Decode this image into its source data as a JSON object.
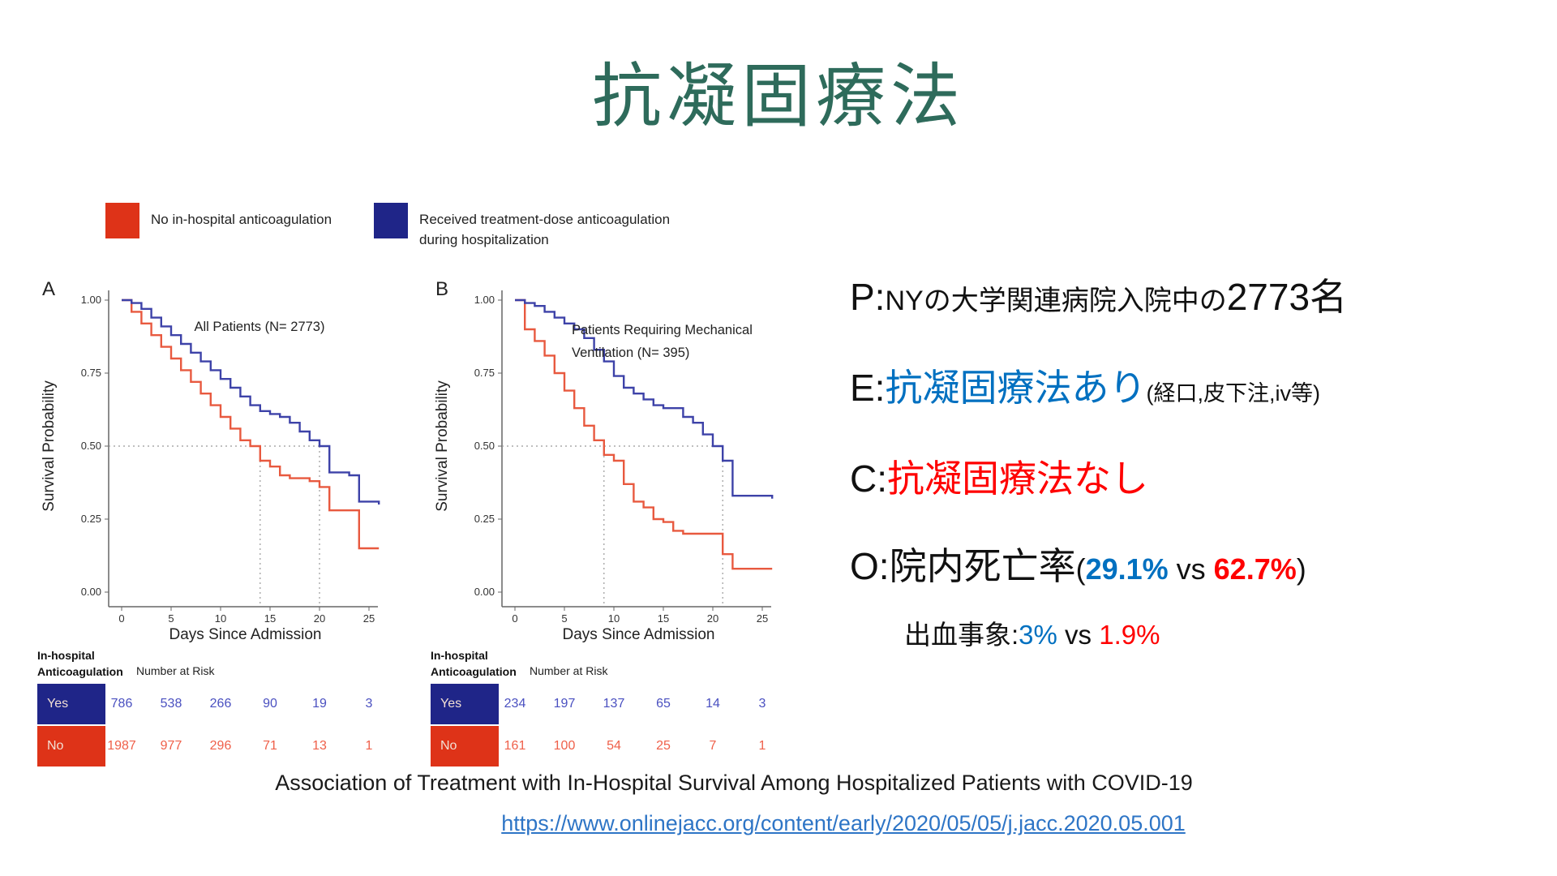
{
  "title": "抗凝固療法",
  "colors": {
    "title_green": "#2E6B5B",
    "text_blue": "#0070C0",
    "text_red": "#FF0000",
    "url_blue": "#2E75C6"
  },
  "figure": {
    "legend": [
      {
        "line1": "No in-hospital anticoagulation",
        "line2": "",
        "color": "#DE3318"
      },
      {
        "line1": "Received treatment-dose anticoagulation",
        "line2": "during hospitalization",
        "color": "#1F2588"
      }
    ]
  },
  "chart_data": [
    {
      "type": "line",
      "panel": "A",
      "annotation": {
        "x": 280,
        "y": 78,
        "anchor": "middle",
        "lines": [
          "All Patients (N= 2773)"
        ]
      },
      "xlabel": "Days Since Admission",
      "ylabel": "Survival Probability",
      "xticks": [
        0,
        5,
        10,
        15,
        20,
        25
      ],
      "yticks": [
        "1.00",
        "0.75",
        "0.50",
        "0.25",
        "0.00"
      ],
      "xlim": [
        0,
        26
      ],
      "ylim": [
        0,
        1
      ],
      "grid": false,
      "median_guides": {
        "y": 0.5,
        "x": [
          14,
          20
        ]
      },
      "series": [
        {
          "name": "No in-hospital anticoagulation",
          "color": "#E8593F",
          "points": [
            [
              0,
              1
            ],
            [
              1,
              0.96
            ],
            [
              2,
              0.92
            ],
            [
              3,
              0.88
            ],
            [
              4,
              0.84
            ],
            [
              5,
              0.8
            ],
            [
              6,
              0.76
            ],
            [
              7,
              0.72
            ],
            [
              8,
              0.68
            ],
            [
              9,
              0.64
            ],
            [
              10,
              0.6
            ],
            [
              11,
              0.56
            ],
            [
              12,
              0.52
            ],
            [
              13,
              0.5
            ],
            [
              14,
              0.45
            ],
            [
              15,
              0.43
            ],
            [
              16,
              0.4
            ],
            [
              17,
              0.39
            ],
            [
              19,
              0.38
            ],
            [
              20,
              0.36
            ],
            [
              21,
              0.28
            ],
            [
              23,
              0.28
            ],
            [
              24,
              0.15
            ],
            [
              26,
              0.15
            ]
          ]
        },
        {
          "name": "Received treatment-dose anticoagulation during hospitalization",
          "color": "#3D42A8",
          "points": [
            [
              0,
              1
            ],
            [
              1,
              0.99
            ],
            [
              2,
              0.97
            ],
            [
              3,
              0.94
            ],
            [
              4,
              0.91
            ],
            [
              5,
              0.88
            ],
            [
              6,
              0.85
            ],
            [
              7,
              0.82
            ],
            [
              8,
              0.79
            ],
            [
              9,
              0.76
            ],
            [
              10,
              0.73
            ],
            [
              11,
              0.7
            ],
            [
              12,
              0.67
            ],
            [
              13,
              0.64
            ],
            [
              14,
              0.62
            ],
            [
              15,
              0.61
            ],
            [
              16,
              0.6
            ],
            [
              17,
              0.58
            ],
            [
              18,
              0.55
            ],
            [
              19,
              0.52
            ],
            [
              20,
              0.5
            ],
            [
              21,
              0.41
            ],
            [
              23,
              0.4
            ],
            [
              24,
              0.31
            ],
            [
              26,
              0.3
            ]
          ]
        }
      ],
      "risk_table": {
        "header1": "In-hospital",
        "header2": "Anticoagulation",
        "number_at_risk_label": "Number at Risk",
        "rows": [
          {
            "label": "Yes",
            "color": "#1F2588",
            "num_color": "#4A50C0",
            "values": [
              786,
              538,
              266,
              90,
              19,
              3
            ]
          },
          {
            "label": "No",
            "color": "#DE3318",
            "num_color": "#EF604A",
            "values": [
              1987,
              977,
              296,
              71,
              13,
              1
            ]
          }
        ]
      }
    },
    {
      "type": "line",
      "panel": "B",
      "annotation": {
        "x": 180,
        "y": 82,
        "anchor": "start",
        "lines": [
          "Patients Requiring Mechanical",
          "Ventilation (N= 395)"
        ]
      },
      "xlabel": "Days Since Admission",
      "ylabel": "Survival Probability",
      "xticks": [
        0,
        5,
        10,
        15,
        20,
        25
      ],
      "yticks": [
        "1.00",
        "0.75",
        "0.50",
        "0.25",
        "0.00"
      ],
      "xlim": [
        0,
        26
      ],
      "ylim": [
        0,
        1
      ],
      "grid": false,
      "median_guides": {
        "y": 0.5,
        "x": [
          9,
          21
        ]
      },
      "series": [
        {
          "name": "No in-hospital anticoagulation",
          "color": "#E8593F",
          "points": [
            [
              0,
              1
            ],
            [
              1,
              0.9
            ],
            [
              2,
              0.86
            ],
            [
              3,
              0.81
            ],
            [
              4,
              0.75
            ],
            [
              5,
              0.69
            ],
            [
              6,
              0.63
            ],
            [
              7,
              0.57
            ],
            [
              8,
              0.52
            ],
            [
              9,
              0.47
            ],
            [
              10,
              0.45
            ],
            [
              11,
              0.37
            ],
            [
              12,
              0.31
            ],
            [
              13,
              0.29
            ],
            [
              14,
              0.25
            ],
            [
              15,
              0.24
            ],
            [
              16,
              0.21
            ],
            [
              17,
              0.2
            ],
            [
              20,
              0.2
            ],
            [
              21,
              0.13
            ],
            [
              22,
              0.08
            ],
            [
              26,
              0.08
            ]
          ]
        },
        {
          "name": "Received treatment-dose anticoagulation during hospitalization",
          "color": "#3D42A8",
          "points": [
            [
              0,
              1
            ],
            [
              1,
              0.99
            ],
            [
              2,
              0.98
            ],
            [
              3,
              0.96
            ],
            [
              4,
              0.94
            ],
            [
              5,
              0.92
            ],
            [
              6,
              0.9
            ],
            [
              7,
              0.87
            ],
            [
              8,
              0.83
            ],
            [
              9,
              0.79
            ],
            [
              10,
              0.74
            ],
            [
              11,
              0.7
            ],
            [
              12,
              0.68
            ],
            [
              13,
              0.66
            ],
            [
              14,
              0.64
            ],
            [
              15,
              0.63
            ],
            [
              17,
              0.6
            ],
            [
              18,
              0.58
            ],
            [
              19,
              0.54
            ],
            [
              20,
              0.5
            ],
            [
              21,
              0.45
            ],
            [
              22,
              0.33
            ],
            [
              26,
              0.32
            ]
          ]
        }
      ],
      "risk_table": {
        "header1": "In-hospital",
        "header2": "Anticoagulation",
        "number_at_risk_label": "Number at Risk",
        "rows": [
          {
            "label": "Yes",
            "color": "#1F2588",
            "num_color": "#4A50C0",
            "values": [
              234,
              197,
              137,
              65,
              14,
              3
            ]
          },
          {
            "label": "No",
            "color": "#DE3318",
            "num_color": "#EF604A",
            "values": [
              161,
              100,
              54,
              25,
              7,
              1
            ]
          }
        ]
      }
    }
  ],
  "peco": {
    "p": {
      "prefix": "P:",
      "text": "NYの大学関連病院入院中の",
      "big": "2773名"
    },
    "e": {
      "prefix": "E:",
      "main": "抗凝固療法あり",
      "note": "(経口,皮下注,iv等)"
    },
    "c": {
      "prefix": "C:",
      "main": "抗凝固療法なし"
    },
    "o": {
      "prefix": "O:",
      "main": "院内死亡率",
      "open": "(",
      "exp": "29.1%",
      "vs": " vs ",
      "ctrl": "62.7%",
      "close": ")"
    },
    "bleed": {
      "label": "出血事象:",
      "exp": "3%",
      "vs": " vs ",
      "ctrl": "1.9%"
    }
  },
  "footer": {
    "citation": "Association of Treatment with In-Hospital Survival Among Hospitalized Patients with COVID-19",
    "url": "https://www.onlinejacc.org/content/early/2020/05/05/j.jacc.2020.05.001"
  }
}
